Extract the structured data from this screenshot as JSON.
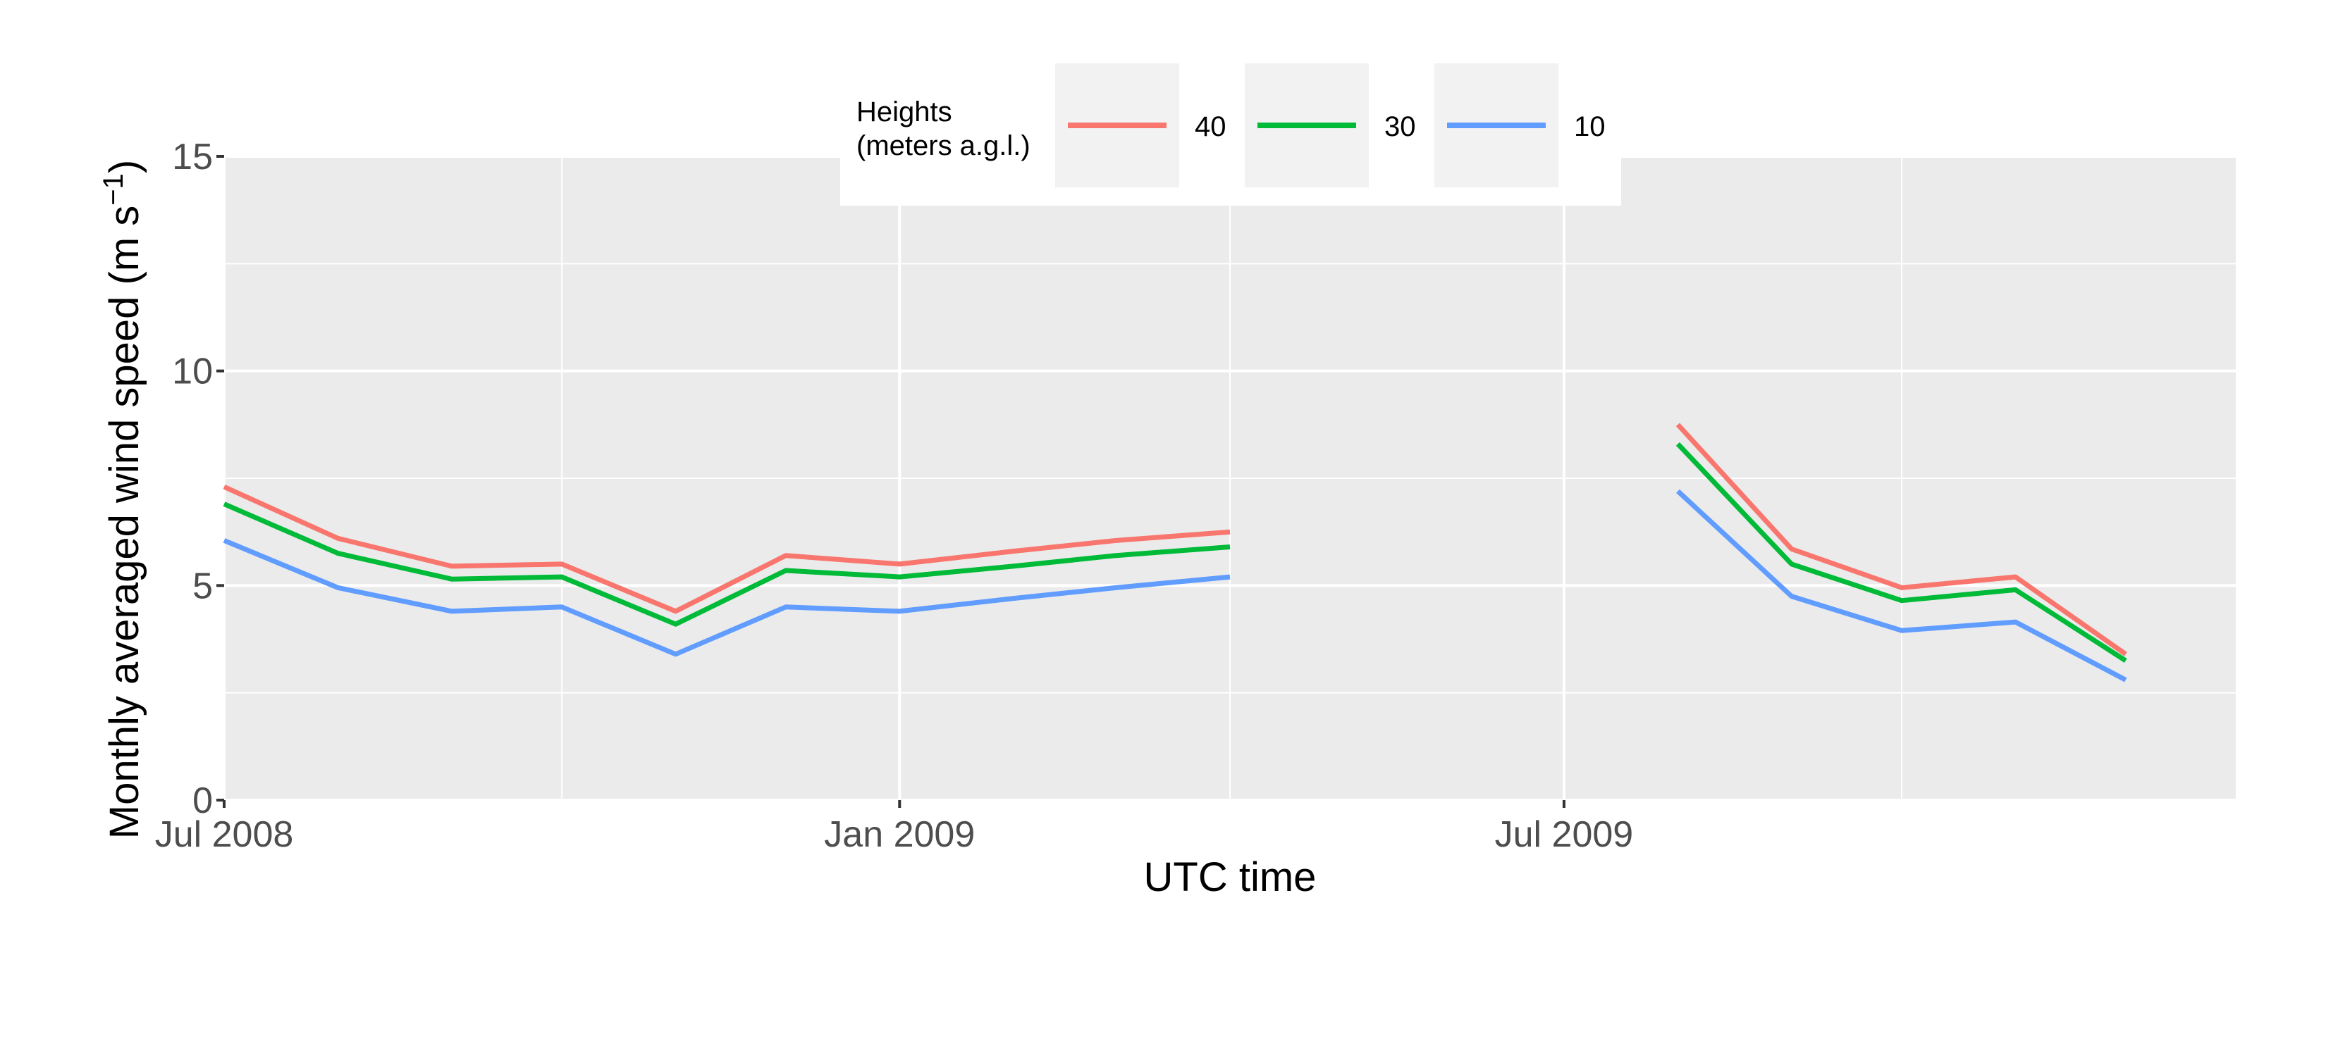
{
  "chart_data": {
    "type": "line",
    "title": "",
    "xlabel": "UTC time",
    "ylabel": "Monthly averaged wind speed (m s",
    "ylabel_sup": "−1",
    "ylabel_close": ")",
    "xlim": [
      "2008-07-01",
      "2009-12-31"
    ],
    "ylim": [
      0,
      15
    ],
    "x_ticks": [
      {
        "date": "2008-07-01",
        "label": "Jul 2008"
      },
      {
        "date": "2009-01-01",
        "label": "Jan 2009"
      },
      {
        "date": "2009-07-01",
        "label": "Jul 2009"
      }
    ],
    "x_minor": [
      "2008-10-01",
      "2009-04-01",
      "2009-10-01"
    ],
    "y_ticks": [
      0,
      5,
      10,
      15
    ],
    "y_minor": [
      2.5,
      7.5,
      12.5
    ],
    "grid": true,
    "panel_background": "#ebebeb",
    "legend": {
      "position": "top",
      "title_line1": "Heights",
      "title_line2": "(meters a.g.l.)"
    },
    "series": [
      {
        "name": "40",
        "color": "#F8766D",
        "points": [
          [
            "2008-07-01",
            7.3
          ],
          [
            "2008-08-01",
            6.1
          ],
          [
            "2008-09-01",
            5.45
          ],
          [
            "2008-10-01",
            5.5
          ],
          [
            "2008-11-01",
            4.4
          ],
          [
            "2008-12-01",
            5.7
          ],
          [
            "2009-01-01",
            5.5
          ],
          [
            "2009-02-01",
            5.8
          ],
          [
            "2009-03-01",
            6.05
          ],
          [
            "2009-04-01",
            6.25
          ],
          null,
          [
            "2009-08-01",
            8.75
          ],
          [
            "2009-09-01",
            5.85
          ],
          [
            "2009-10-01",
            4.95
          ],
          [
            "2009-11-01",
            5.2
          ],
          [
            "2009-12-01",
            3.4
          ]
        ]
      },
      {
        "name": "30",
        "color": "#00BA38",
        "points": [
          [
            "2008-07-01",
            6.9
          ],
          [
            "2008-08-01",
            5.75
          ],
          [
            "2008-09-01",
            5.15
          ],
          [
            "2008-10-01",
            5.2
          ],
          [
            "2008-11-01",
            4.1
          ],
          [
            "2008-12-01",
            5.35
          ],
          [
            "2009-01-01",
            5.2
          ],
          [
            "2009-02-01",
            5.45
          ],
          [
            "2009-03-01",
            5.7
          ],
          [
            "2009-04-01",
            5.9
          ],
          null,
          [
            "2009-08-01",
            8.3
          ],
          [
            "2009-09-01",
            5.5
          ],
          [
            "2009-10-01",
            4.65
          ],
          [
            "2009-11-01",
            4.9
          ],
          [
            "2009-12-01",
            3.25
          ]
        ]
      },
      {
        "name": "10",
        "color": "#619CFF",
        "points": [
          [
            "2008-07-01",
            6.05
          ],
          [
            "2008-08-01",
            4.95
          ],
          [
            "2008-09-01",
            4.4
          ],
          [
            "2008-10-01",
            4.5
          ],
          [
            "2008-11-01",
            3.4
          ],
          [
            "2008-12-01",
            4.5
          ],
          [
            "2009-01-01",
            4.4
          ],
          [
            "2009-02-01",
            4.7
          ],
          [
            "2009-03-01",
            4.95
          ],
          [
            "2009-04-01",
            5.2
          ],
          null,
          [
            "2009-08-01",
            7.2
          ],
          [
            "2009-09-01",
            4.75
          ],
          [
            "2009-10-01",
            3.95
          ],
          [
            "2009-11-01",
            4.15
          ],
          [
            "2009-12-01",
            2.8
          ]
        ]
      }
    ]
  }
}
